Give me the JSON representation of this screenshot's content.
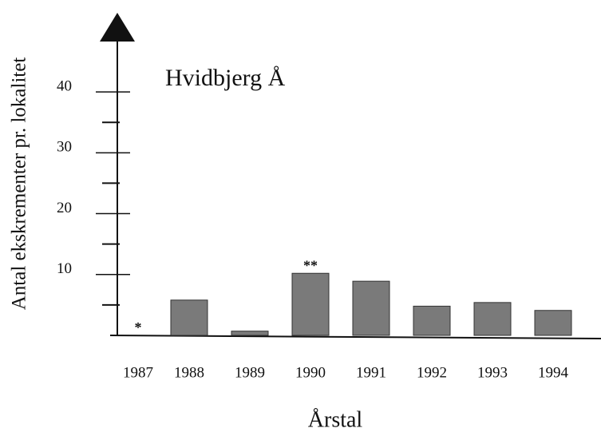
{
  "chart_data": {
    "type": "bar",
    "title": "Hvidbjerg Å",
    "x_label": "Årstal",
    "y_label": "Antal ekskrementer pr. lokalitet",
    "categories": [
      "1987",
      "1988",
      "1989",
      "1990",
      "1991",
      "1992",
      "1993",
      "1994"
    ],
    "values": [
      0,
      5.8,
      0.7,
      10.2,
      8.9,
      4.8,
      5.4,
      4.1
    ],
    "color": "#7a7a7a",
    "annotations": [
      {
        "text": "*",
        "category": 0
      },
      {
        "text": "**",
        "category": 3
      }
    ],
    "ylim": [
      0,
      53
    ],
    "yticks": [
      10,
      20,
      30,
      40
    ],
    "minor_yticks": [
      5,
      15,
      25,
      35
    ]
  }
}
